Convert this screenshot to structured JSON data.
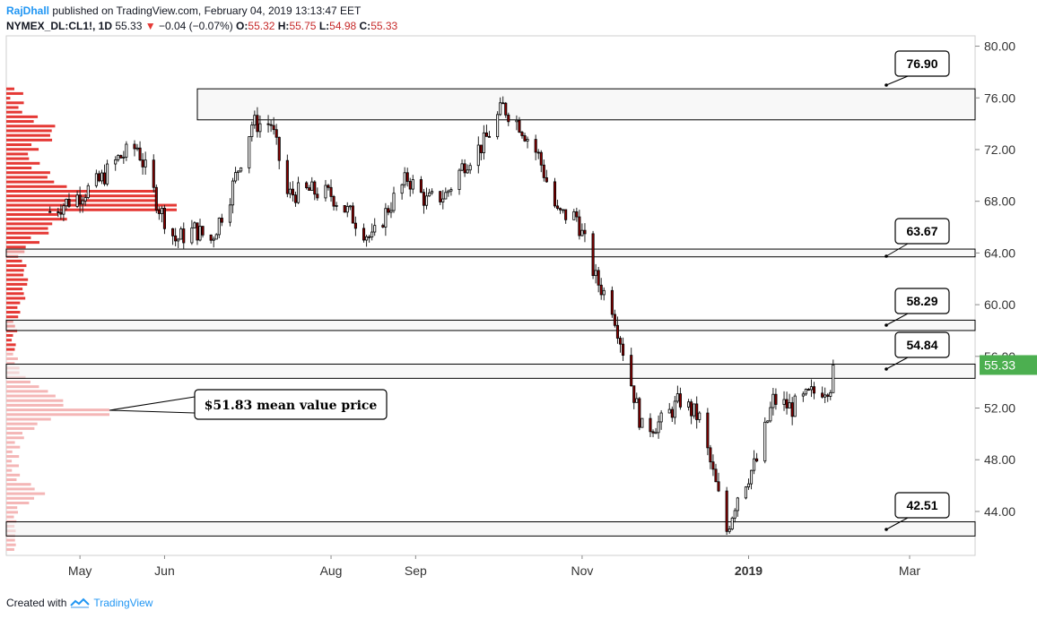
{
  "header": {
    "author": "RajDhall",
    "published_text": "published on TradingView.com, February 04, 2019 13:13:47 EET",
    "symbol": "NYMEX_DL:CL1!, 1D",
    "last": "55.33",
    "change": "−0.04 (−0.07%)",
    "o_label": "O:",
    "o_value": "55.32",
    "h_label": "H:",
    "h_value": "55.75",
    "l_label": "L:",
    "l_value": "54.98",
    "c_label": "C:",
    "c_value": "55.33"
  },
  "footer": {
    "created_with": "Created with",
    "brand": "TradingView"
  },
  "colors": {
    "up": "#000000",
    "down": "#8b0000",
    "profile_upper": "#e53935",
    "profile_lower": "#f4b6b6",
    "last_price_bg": "#4caf50",
    "zone_fill": "#f2f2f2"
  },
  "chart_data": {
    "type": "candlestick",
    "title": "",
    "y_axis": {
      "ticks": [
        "44.00",
        "48.00",
        "52.00",
        "56.00",
        "60.00",
        "64.00",
        "68.00",
        "72.00",
        "76.00",
        "80.00"
      ],
      "range": [
        40.6,
        80.8
      ]
    },
    "x_axis": {
      "ticks": [
        "May",
        "Jun",
        "Aug",
        "Sep",
        "Nov",
        "2019",
        "Mar"
      ]
    },
    "last_price": "55.33",
    "levels": [
      {
        "label": "76.90",
        "zone": [
          74.3,
          76.7
        ]
      },
      {
        "label": "63.67",
        "zone": [
          63.7,
          64.3
        ]
      },
      {
        "label": "58.29",
        "zone": [
          58.0,
          58.8
        ]
      },
      {
        "label": "54.84",
        "zone": [
          54.3,
          55.4
        ]
      },
      {
        "label": "42.51",
        "zone": [
          42.1,
          43.2
        ]
      }
    ],
    "annotation": {
      "text": "$51.83 mean value price",
      "price": 51.83
    },
    "volume_profile_note": "volume-by-price histogram on left; longest bar near 67.7 (upper) and 51.8 (lower)",
    "close_path": [
      [
        "2018-04-20",
        67.2
      ],
      [
        "2018-05-01",
        68.5
      ],
      [
        "2018-05-08",
        69.5
      ],
      [
        "2018-05-15",
        71.3
      ],
      [
        "2018-05-22",
        72.2
      ],
      [
        "2018-05-30",
        67.5
      ],
      [
        "2018-06-05",
        65.0
      ],
      [
        "2018-06-12",
        65.8
      ],
      [
        "2018-06-18",
        65.0
      ],
      [
        "2018-06-25",
        68.5
      ],
      [
        "2018-07-03",
        74.0
      ],
      [
        "2018-07-10",
        74.0
      ],
      [
        "2018-07-16",
        68.5
      ],
      [
        "2018-07-24",
        68.8
      ],
      [
        "2018-08-01",
        68.5
      ],
      [
        "2018-08-08",
        67.0
      ],
      [
        "2018-08-16",
        65.0
      ],
      [
        "2018-08-22",
        67.5
      ],
      [
        "2018-08-29",
        69.8
      ],
      [
        "2018-09-05",
        68.0
      ],
      [
        "2018-09-12",
        68.5
      ],
      [
        "2018-09-19",
        71.0
      ],
      [
        "2018-09-26",
        72.5
      ],
      [
        "2018-10-03",
        75.3
      ],
      [
        "2018-10-09",
        74.0
      ],
      [
        "2018-10-16",
        71.5
      ],
      [
        "2018-10-23",
        67.0
      ],
      [
        "2018-10-30",
        66.8
      ],
      [
        "2018-11-06",
        62.0
      ],
      [
        "2018-11-12",
        59.9
      ],
      [
        "2018-11-16",
        56.5
      ],
      [
        "2018-11-23",
        50.4
      ],
      [
        "2018-11-30",
        50.9
      ],
      [
        "2018-12-07",
        52.6
      ],
      [
        "2018-12-14",
        51.2
      ],
      [
        "2018-12-20",
        46.0
      ],
      [
        "2018-12-24",
        42.5
      ],
      [
        "2018-12-28",
        45.3
      ],
      [
        "2019-01-04",
        47.9
      ],
      [
        "2019-01-10",
        52.6
      ],
      [
        "2019-01-17",
        52.0
      ],
      [
        "2019-01-24",
        53.1
      ],
      [
        "2019-01-31",
        53.8
      ],
      [
        "2019-02-04",
        55.33
      ]
    ]
  }
}
